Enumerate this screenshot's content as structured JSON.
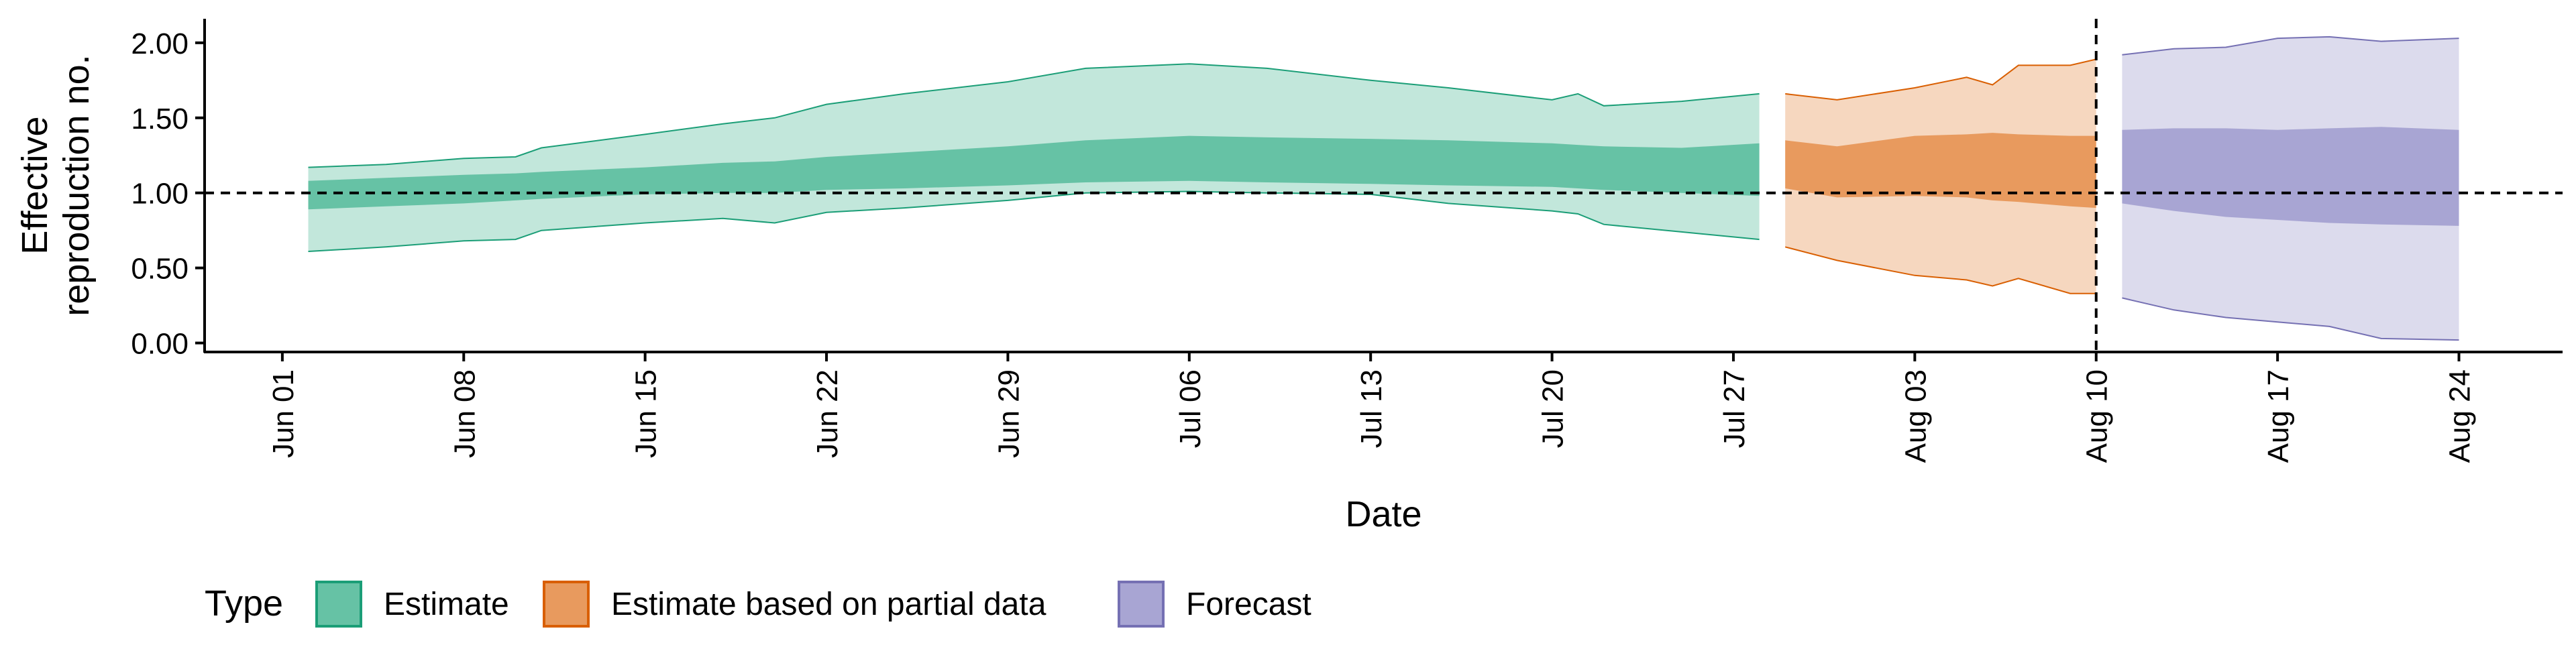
{
  "chart_data": {
    "type": "area",
    "title": "",
    "xlabel": "Date",
    "ylabel_lines": [
      "Effective",
      "reproduction no."
    ],
    "xlim": [
      "2020-05-29",
      "2020-08-28"
    ],
    "ylim": [
      -0.06,
      2.16
    ],
    "y_ticks": [
      {
        "value": 0.0,
        "label": "0.00"
      },
      {
        "value": 0.5,
        "label": "0.50"
      },
      {
        "value": 1.0,
        "label": "1.00"
      },
      {
        "value": 1.5,
        "label": "1.50"
      },
      {
        "value": 2.0,
        "label": "2.00"
      }
    ],
    "x_ticks": [
      {
        "date": "2020-06-01",
        "label": "Jun 01"
      },
      {
        "date": "2020-06-08",
        "label": "Jun 08"
      },
      {
        "date": "2020-06-15",
        "label": "Jun 15"
      },
      {
        "date": "2020-06-22",
        "label": "Jun 22"
      },
      {
        "date": "2020-06-29",
        "label": "Jun 29"
      },
      {
        "date": "2020-07-06",
        "label": "Jul 06"
      },
      {
        "date": "2020-07-13",
        "label": "Jul 13"
      },
      {
        "date": "2020-07-20",
        "label": "Jul 20"
      },
      {
        "date": "2020-07-27",
        "label": "Jul 27"
      },
      {
        "date": "2020-08-03",
        "label": "Aug 03"
      },
      {
        "date": "2020-08-10",
        "label": "Aug 10"
      },
      {
        "date": "2020-08-17",
        "label": "Aug 17"
      },
      {
        "date": "2020-08-24",
        "label": "Aug 24"
      }
    ],
    "reference_line": {
      "y": 1.0,
      "style": "dashed"
    },
    "vertical_line": {
      "date": "2020-08-10",
      "style": "dashed"
    },
    "grid": false,
    "legend": {
      "title": "Type",
      "position": "bottom-left"
    },
    "series": [
      {
        "name": "Estimate",
        "fill_color": "#66C2A5",
        "line_color": "#1B9E77",
        "points": [
          {
            "x": "2020-06-02",
            "lower90": 0.61,
            "upper90": 1.17,
            "lower50": 0.89,
            "upper50": 1.08
          },
          {
            "x": "2020-06-05",
            "lower90": 0.64,
            "upper90": 1.19,
            "lower50": 0.91,
            "upper50": 1.1
          },
          {
            "x": "2020-06-08",
            "lower90": 0.68,
            "upper90": 1.23,
            "lower50": 0.93,
            "upper50": 1.12
          },
          {
            "x": "2020-06-10",
            "lower90": 0.69,
            "upper90": 1.24,
            "lower50": 0.95,
            "upper50": 1.13
          },
          {
            "x": "2020-06-11",
            "lower90": 0.75,
            "upper90": 1.3,
            "lower50": 0.96,
            "upper50": 1.14
          },
          {
            "x": "2020-06-15",
            "lower90": 0.8,
            "upper90": 1.39,
            "lower50": 0.99,
            "upper50": 1.17
          },
          {
            "x": "2020-06-18",
            "lower90": 0.83,
            "upper90": 1.46,
            "lower50": 1.0,
            "upper50": 1.2
          },
          {
            "x": "2020-06-20",
            "lower90": 0.8,
            "upper90": 1.5,
            "lower50": 1.0,
            "upper50": 1.21
          },
          {
            "x": "2020-06-22",
            "lower90": 0.87,
            "upper90": 1.59,
            "lower50": 1.02,
            "upper50": 1.24
          },
          {
            "x": "2020-06-25",
            "lower90": 0.9,
            "upper90": 1.66,
            "lower50": 1.03,
            "upper50": 1.27
          },
          {
            "x": "2020-06-29",
            "lower90": 0.95,
            "upper90": 1.74,
            "lower50": 1.05,
            "upper50": 1.31
          },
          {
            "x": "2020-07-02",
            "lower90": 1.0,
            "upper90": 1.83,
            "lower50": 1.07,
            "upper50": 1.35
          },
          {
            "x": "2020-07-06",
            "lower90": 1.01,
            "upper90": 1.86,
            "lower50": 1.08,
            "upper50": 1.38
          },
          {
            "x": "2020-07-09",
            "lower90": 1.0,
            "upper90": 1.83,
            "lower50": 1.07,
            "upper50": 1.37
          },
          {
            "x": "2020-07-13",
            "lower90": 0.99,
            "upper90": 1.75,
            "lower50": 1.06,
            "upper50": 1.36
          },
          {
            "x": "2020-07-16",
            "lower90": 0.93,
            "upper90": 1.7,
            "lower50": 1.05,
            "upper50": 1.35
          },
          {
            "x": "2020-07-20",
            "lower90": 0.88,
            "upper90": 1.62,
            "lower50": 1.04,
            "upper50": 1.33
          },
          {
            "x": "2020-07-21",
            "lower90": 0.86,
            "upper90": 1.66,
            "lower50": 1.03,
            "upper50": 1.32
          },
          {
            "x": "2020-07-22",
            "lower90": 0.79,
            "upper90": 1.58,
            "lower50": 1.02,
            "upper50": 1.31
          },
          {
            "x": "2020-07-25",
            "lower90": 0.74,
            "upper90": 1.61,
            "lower50": 1.0,
            "upper50": 1.3
          },
          {
            "x": "2020-07-28",
            "lower90": 0.69,
            "upper90": 1.66,
            "lower50": 0.98,
            "upper50": 1.33
          }
        ]
      },
      {
        "name": "Estimate based on partial data",
        "fill_color": "#E89A5E",
        "line_color": "#D95F02",
        "points": [
          {
            "x": "2020-07-29",
            "lower90": 0.64,
            "upper90": 1.66,
            "lower50": 1.03,
            "upper50": 1.35
          },
          {
            "x": "2020-07-31",
            "lower90": 0.55,
            "upper90": 1.62,
            "lower50": 0.97,
            "upper50": 1.31
          },
          {
            "x": "2020-08-03",
            "lower90": 0.45,
            "upper90": 1.7,
            "lower50": 0.98,
            "upper50": 1.38
          },
          {
            "x": "2020-08-05",
            "lower90": 0.42,
            "upper90": 1.77,
            "lower50": 0.97,
            "upper50": 1.39
          },
          {
            "x": "2020-08-06",
            "lower90": 0.38,
            "upper90": 1.72,
            "lower50": 0.95,
            "upper50": 1.4
          },
          {
            "x": "2020-08-07",
            "lower90": 0.43,
            "upper90": 1.85,
            "lower50": 0.94,
            "upper50": 1.39
          },
          {
            "x": "2020-08-09",
            "lower90": 0.33,
            "upper90": 1.85,
            "lower50": 0.91,
            "upper50": 1.38
          },
          {
            "x": "2020-08-10",
            "lower90": 0.33,
            "upper90": 1.89,
            "lower50": 0.9,
            "upper50": 1.38
          }
        ]
      },
      {
        "name": "Forecast",
        "fill_color": "#A8A5D3",
        "line_color": "#7570B3",
        "points": [
          {
            "x": "2020-08-11",
            "lower90": 0.3,
            "upper90": 1.92,
            "lower50": 0.93,
            "upper50": 1.42
          },
          {
            "x": "2020-08-13",
            "lower90": 0.22,
            "upper90": 1.96,
            "lower50": 0.88,
            "upper50": 1.43
          },
          {
            "x": "2020-08-15",
            "lower90": 0.17,
            "upper90": 1.97,
            "lower50": 0.84,
            "upper50": 1.43
          },
          {
            "x": "2020-08-17",
            "lower90": 0.14,
            "upper90": 2.03,
            "lower50": 0.82,
            "upper50": 1.42
          },
          {
            "x": "2020-08-19",
            "lower90": 0.11,
            "upper90": 2.04,
            "lower50": 0.8,
            "upper50": 1.43
          },
          {
            "x": "2020-08-21",
            "lower90": 0.03,
            "upper90": 2.01,
            "lower50": 0.79,
            "upper50": 1.44
          },
          {
            "x": "2020-08-24",
            "lower90": 0.02,
            "upper90": 2.03,
            "lower50": 0.78,
            "upper50": 1.42
          }
        ]
      }
    ]
  }
}
